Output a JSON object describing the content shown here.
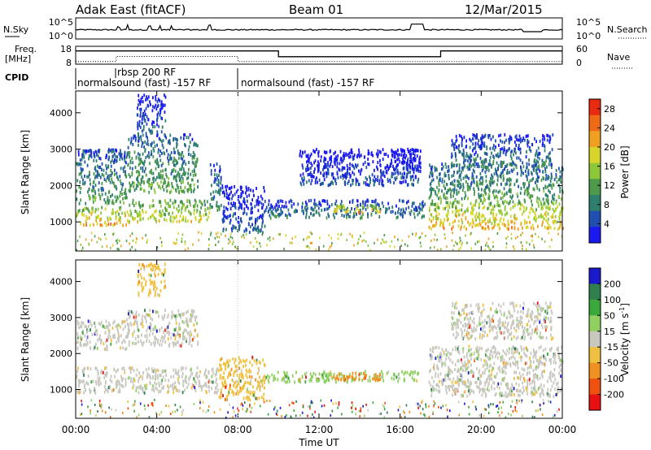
{
  "header": {
    "station": "Adak East (fitACF)",
    "beam": "Beam 01",
    "date": "12/Mar/2015"
  },
  "chart_data": [
    {
      "type": "line",
      "panel": "noise",
      "left_label": "N.Sky",
      "right_label": "N.Search",
      "left_ticks": [
        "10^5",
        "10^0"
      ],
      "right_ticks": [
        "10^5",
        "10^0"
      ],
      "log_scale": true
    },
    {
      "type": "line",
      "panel": "frequency",
      "left_label_line1": "Freq.",
      "left_label_line2": "[MHz]",
      "right_label": "Nave",
      "left_ticks": [
        "18",
        "8"
      ],
      "right_ticks": [
        "60",
        "0"
      ],
      "ylim": [
        8,
        18
      ],
      "freq_series": [
        {
          "x": 0,
          "y": 15.4
        },
        {
          "x": 10,
          "y": 15.4
        },
        {
          "x": 10,
          "y": 12.2
        },
        {
          "x": 18,
          "y": 12.2
        },
        {
          "x": 18,
          "y": 15.4
        },
        {
          "x": 24,
          "y": 15.4
        }
      ],
      "nave_series": [
        {
          "x": 0,
          "y": 9
        },
        {
          "x": 2,
          "y": 9
        },
        {
          "x": 2,
          "y": 26
        },
        {
          "x": 8,
          "y": 26
        },
        {
          "x": 8,
          "y": 9
        },
        {
          "x": 24,
          "y": 9
        }
      ],
      "nave_ylim": [
        0,
        60
      ]
    },
    {
      "type": "table",
      "panel": "cpid",
      "label": "CPID",
      "entries": [
        {
          "start": 0,
          "end": 8,
          "text": "normalsound (fast) -157 RF"
        },
        {
          "start": 2,
          "end": 8,
          "text": "rbsp 200 RF"
        },
        {
          "start": 8,
          "end": 24,
          "text": "normalsound (fast) -157 RF"
        }
      ]
    },
    {
      "type": "heatmap",
      "panel": "power",
      "ylabel": "Slant Range [km]",
      "yticks": [
        1000,
        2000,
        3000,
        4000
      ],
      "ylim": [
        200,
        4600
      ],
      "colorbar_label": "Power [dB]",
      "colorbar_ticks": [
        4,
        8,
        12,
        16,
        20,
        24,
        28
      ],
      "colorbar_range": [
        0,
        30
      ],
      "colors": [
        "#1a1aee",
        "#1f4fb0",
        "#2f7f6f",
        "#4c9a4a",
        "#8dc83a",
        "#d7d52a",
        "#f0a020",
        "#ee6a16",
        "#e82a10"
      ],
      "regions": [
        {
          "t0": 0.0,
          "t1": 2.6,
          "r0": 900,
          "r1": 1400,
          "p": 22
        },
        {
          "t0": 2.6,
          "t1": 6.6,
          "r0": 1000,
          "r1": 1600,
          "p": 19
        },
        {
          "t0": 6.6,
          "t1": 7.2,
          "r0": 1300,
          "r1": 2600,
          "p": 10
        },
        {
          "t0": 0.0,
          "t1": 2.5,
          "r0": 1500,
          "r1": 3000,
          "p": 11
        },
        {
          "t0": 2.5,
          "t1": 6.0,
          "r0": 1800,
          "r1": 3400,
          "p": 12
        },
        {
          "t0": 3.0,
          "t1": 4.4,
          "r0": 3400,
          "r1": 4500,
          "p": 6
        },
        {
          "t0": 7.2,
          "t1": 9.3,
          "r0": 700,
          "r1": 2000,
          "p": 5
        },
        {
          "t0": 9.3,
          "t1": 17.2,
          "r0": 1100,
          "r1": 1600,
          "p": 9
        },
        {
          "t0": 12.7,
          "t1": 15.0,
          "r0": 1250,
          "r1": 1450,
          "p": 22
        },
        {
          "t0": 11.0,
          "t1": 17.0,
          "r0": 2000,
          "r1": 3000,
          "p": 4
        },
        {
          "t0": 15.5,
          "t1": 17.0,
          "r0": 2200,
          "r1": 3000,
          "p": 4
        },
        {
          "t0": 17.4,
          "t1": 24.0,
          "r0": 800,
          "r1": 1500,
          "p": 22
        },
        {
          "t0": 17.4,
          "t1": 24.0,
          "r0": 1500,
          "r1": 2600,
          "p": 12
        },
        {
          "t0": 18.5,
          "t1": 23.5,
          "r0": 2500,
          "r1": 3400,
          "p": 8
        }
      ]
    },
    {
      "type": "heatmap",
      "panel": "velocity",
      "ylabel": "Slant Range [km]",
      "yticks": [
        1000,
        2000,
        3000,
        4000
      ],
      "ylim": [
        200,
        4600
      ],
      "colorbar_label": "Velocity [m s^-1]",
      "colorbar_ticks": [
        "200",
        "100",
        "50",
        "15",
        "-15",
        "-50",
        "-100",
        "-200"
      ],
      "colors": [
        "#1a1acc",
        "#2f7f4f",
        "#3aa83a",
        "#8fd060",
        "#c8c8c0",
        "#f0c040",
        "#f09020",
        "#f05010",
        "#e81010"
      ],
      "regions": [
        {
          "t0": 0.0,
          "t1": 7.0,
          "r0": 900,
          "r1": 1600,
          "c": 4
        },
        {
          "t0": 0.0,
          "t1": 2.5,
          "r0": 2100,
          "r1": 2900,
          "c": 4
        },
        {
          "t0": 2.5,
          "t1": 6.0,
          "r0": 2200,
          "r1": 3200,
          "c": 4
        },
        {
          "t0": 3.0,
          "t1": 4.4,
          "r0": 3600,
          "r1": 4500,
          "c": 5
        },
        {
          "t0": 7.0,
          "t1": 9.3,
          "r0": 700,
          "r1": 1900,
          "c": 5
        },
        {
          "t0": 9.3,
          "t1": 17.0,
          "r0": 1200,
          "r1": 1500,
          "c": 3
        },
        {
          "t0": 12.7,
          "t1": 15.0,
          "r0": 1250,
          "r1": 1450,
          "c": 6
        },
        {
          "t0": 17.4,
          "t1": 24.0,
          "r0": 800,
          "r1": 2200,
          "c": 4
        },
        {
          "t0": 18.5,
          "t1": 23.5,
          "r0": 2400,
          "r1": 3400,
          "c": 4
        }
      ]
    }
  ],
  "x_axis": {
    "label": "Time UT",
    "ticks": [
      "00:00",
      "04:00",
      "08:00",
      "12:00",
      "16:00",
      "20:00",
      "00:00"
    ],
    "tick_hours": [
      0,
      4,
      8,
      12,
      16,
      20,
      24
    ],
    "range_hours": [
      0,
      24
    ]
  }
}
